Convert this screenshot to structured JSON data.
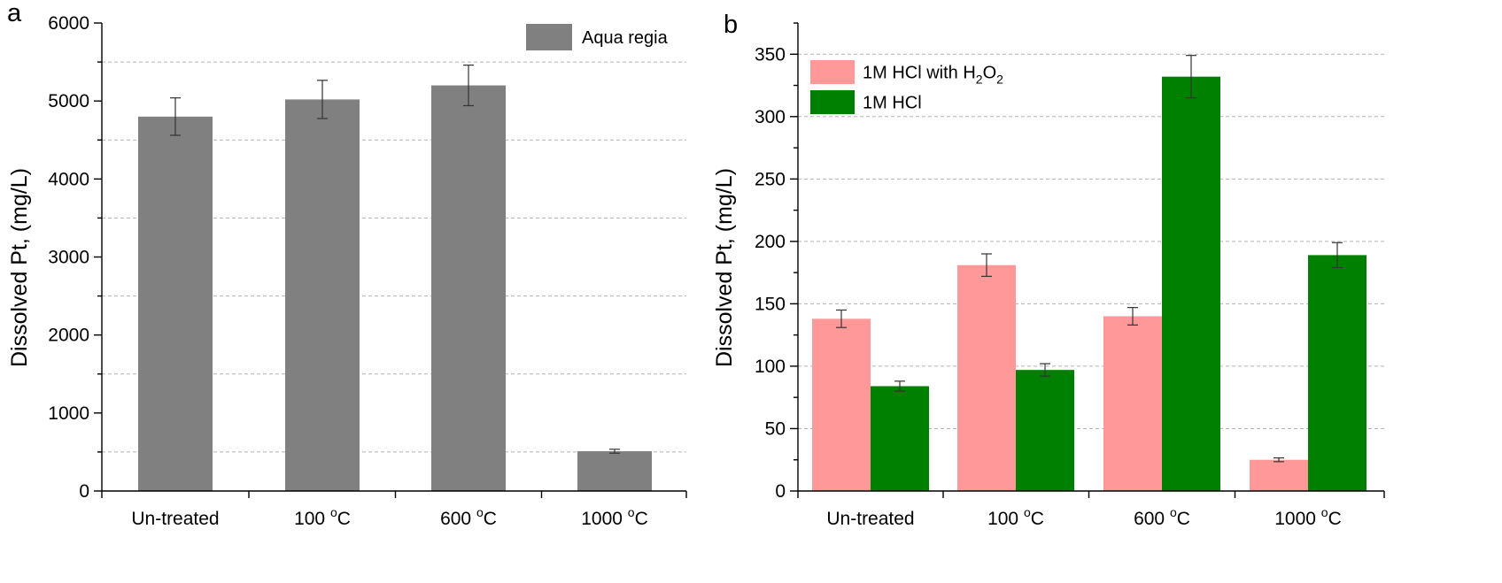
{
  "chart_data": [
    {
      "type": "bar",
      "panel_label": "a",
      "ylabel": "Dissolved Pt, (mg/L)",
      "xlabel": "",
      "ylim": [
        0,
        6000
      ],
      "y_major_ticks": [
        0,
        1000,
        2000,
        3000,
        4000,
        5000,
        6000
      ],
      "y_gridlines": [
        500,
        1500,
        2500,
        3500,
        4500,
        5500
      ],
      "grid": "dashed horizontal",
      "legend_position": "top-right",
      "categories": [
        {
          "base": "Un-treated",
          "sup": "",
          "unit": ""
        },
        {
          "base": "100 ",
          "sup": "o",
          "unit": "C"
        },
        {
          "base": "600 ",
          "sup": "o",
          "unit": "C"
        },
        {
          "base": "1000 ",
          "sup": "o",
          "unit": "C"
        }
      ],
      "series": [
        {
          "name": "Aqua regia",
          "color": "#808080",
          "values": [
            4800,
            5020,
            5200,
            510
          ],
          "errors": [
            240,
            245,
            260,
            25
          ]
        }
      ]
    },
    {
      "type": "bar",
      "panel_label": "b",
      "ylabel": "Dissolved Pt, (mg/L)",
      "xlabel": "",
      "ylim": [
        0,
        375
      ],
      "y_major_ticks": [
        0,
        50,
        100,
        150,
        200,
        250,
        300,
        350
      ],
      "y_gridlines": [
        50,
        100,
        150,
        200,
        250,
        300,
        350
      ],
      "grid": "dashed horizontal",
      "legend_position": "top-left",
      "categories": [
        {
          "base": "Un-treated",
          "sup": "",
          "unit": ""
        },
        {
          "base": "100 ",
          "sup": "o",
          "unit": "C"
        },
        {
          "base": "600 ",
          "sup": "o",
          "unit": "C"
        },
        {
          "base": "1000 ",
          "sup": "o",
          "unit": "C"
        }
      ],
      "series": [
        {
          "name": "1M HCl with H2O2",
          "name_parts": [
            {
              "t": "1M HCl with H"
            },
            {
              "t": "2",
              "sub": true
            },
            {
              "t": "O"
            },
            {
              "t": "2",
              "sub": true
            }
          ],
          "color": "#ff9999",
          "values": [
            138,
            181,
            140,
            25
          ],
          "errors": [
            7,
            9,
            7,
            1.5
          ]
        },
        {
          "name": "1M HCl",
          "name_parts": [
            {
              "t": "1M HCl"
            }
          ],
          "color": "#008000",
          "values": [
            84,
            97,
            332,
            189
          ],
          "errors": [
            4,
            5,
            17,
            10
          ]
        }
      ]
    }
  ]
}
